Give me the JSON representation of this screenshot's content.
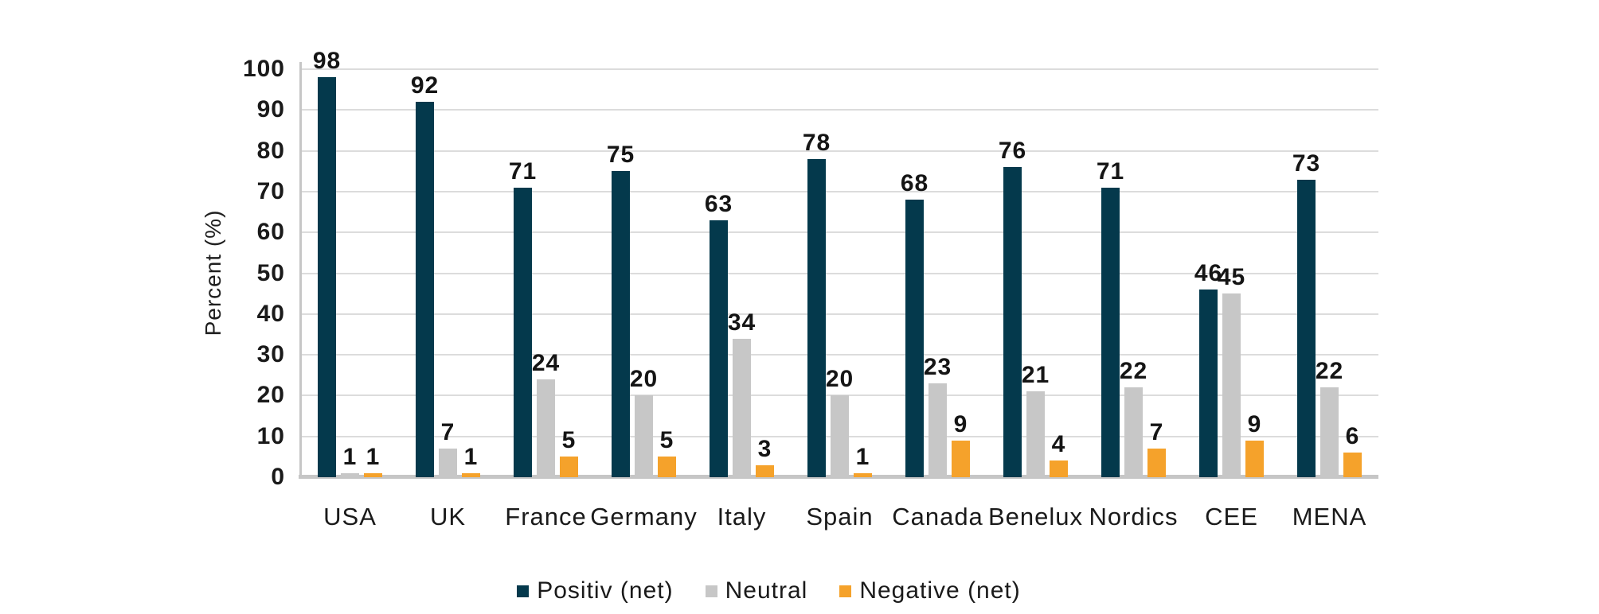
{
  "chart_data": {
    "type": "bar",
    "title": "",
    "xlabel": "",
    "ylabel": "Percent (%)",
    "ylim": [
      0,
      100
    ],
    "ytick_step": 10,
    "grid": true,
    "legend_position": "bottom",
    "value_labels": true,
    "categories": [
      "USA",
      "UK",
      "France",
      "Germany",
      "Italy",
      "Spain",
      "Canada",
      "Benelux",
      "Nordics",
      "CEE",
      "MENA"
    ],
    "series": [
      {
        "name": "Positiv (net)",
        "color": "#04394C",
        "values": [
          98,
          92,
          71,
          75,
          63,
          78,
          68,
          76,
          71,
          46,
          73
        ]
      },
      {
        "name": "Neutral",
        "color": "#C7C7C7",
        "values": [
          1,
          7,
          24,
          20,
          34,
          20,
          23,
          21,
          22,
          45,
          22
        ]
      },
      {
        "name": "Negative (net)",
        "color": "#F5A22B",
        "values": [
          1,
          1,
          5,
          5,
          3,
          1,
          9,
          4,
          7,
          9,
          6
        ]
      }
    ]
  }
}
